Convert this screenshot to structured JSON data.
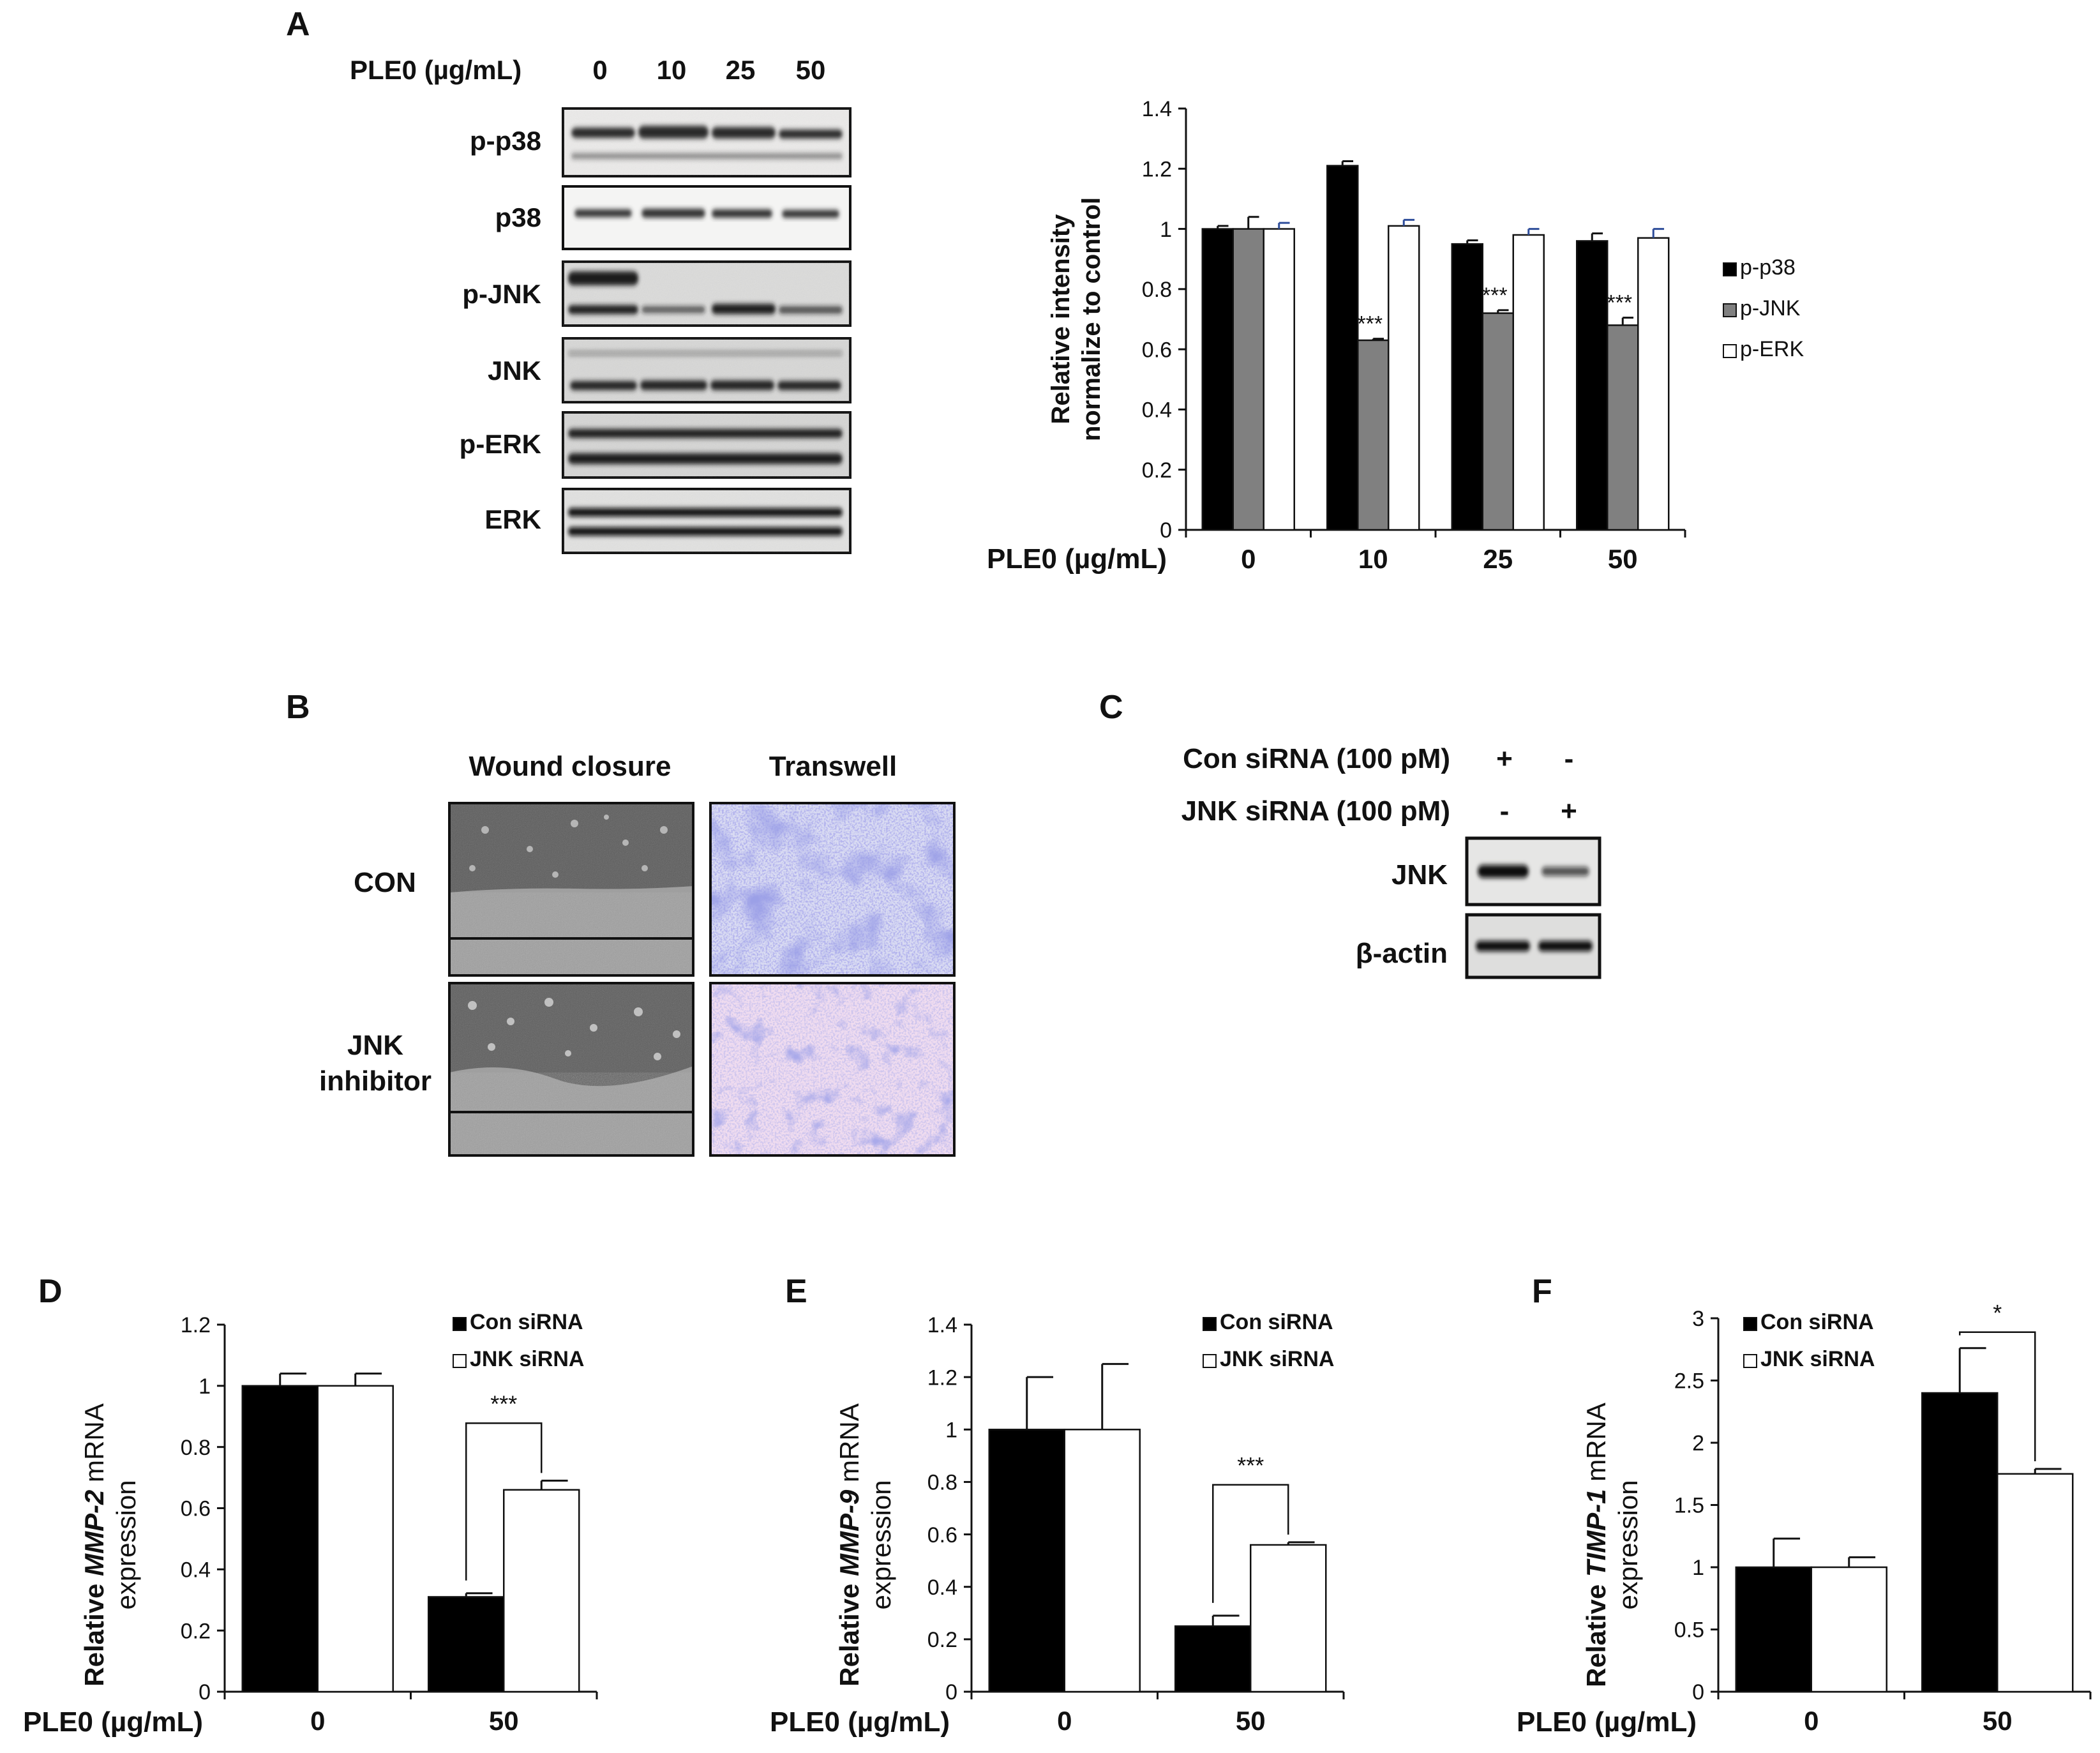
{
  "panel_A": {
    "letter": "A",
    "dose_label": "PLE0 (µg/mL)",
    "doses": [
      "0",
      "10",
      "25",
      "50"
    ],
    "blot_rows": [
      "p-p38",
      "p38",
      "p-JNK",
      "JNK",
      "p-ERK",
      "ERK"
    ]
  },
  "panel_B": {
    "letter": "B",
    "col_headers": [
      "Wound closure",
      "Transwell"
    ],
    "row_labels": [
      "CON",
      "JNK",
      "inhibitor"
    ]
  },
  "panel_C": {
    "letter": "C",
    "row1_label": "Con siRNA (100 pM)",
    "row1_signs": [
      "+",
      "-"
    ],
    "row2_label": "JNK siRNA (100 pM)",
    "row2_signs": [
      "-",
      "+"
    ],
    "blot_rows": [
      "JNK",
      "β-actin"
    ]
  },
  "panel_D": {
    "letter": "D",
    "ylabel_pre": "Relative ",
    "ylabel_gene": "MMP-2",
    "ylabel_post": " mRNA",
    "ylabel2": "expression",
    "xlabel": "PLE0 (µg/mL)"
  },
  "panel_E": {
    "letter": "E",
    "ylabel_pre": "Relative ",
    "ylabel_gene": "MMP-9",
    "ylabel_post": " mRNA",
    "ylabel2": "expression",
    "xlabel": "PLE0 (µg/mL)"
  },
  "panel_F": {
    "letter": "F",
    "ylabel_pre": "Relative ",
    "ylabel_gene": "TIMP-1",
    "ylabel_post": " mRNA",
    "ylabel2": "expression",
    "xlabel": "PLE0 (µg/mL)"
  },
  "chart_data": [
    {
      "id": "A",
      "type": "bar",
      "categories": [
        "0",
        "10",
        "25",
        "50"
      ],
      "xlabel": "PLE0 (µg/mL)",
      "ylabel": [
        "Relative intensity",
        "normalize to control"
      ],
      "ylim": [
        0,
        1.4
      ],
      "yticks": [
        "0",
        "0.2",
        "0.4",
        "0.6",
        "0.8",
        "1",
        "1.2",
        "1.4"
      ],
      "legend_position": "right",
      "series": [
        {
          "name": "p-p38",
          "color": "#000000",
          "values": [
            1.0,
            1.21,
            0.95,
            0.96
          ],
          "errors": [
            0.01,
            0.015,
            0.012,
            0.025
          ]
        },
        {
          "name": "p-JNK",
          "color": "#808080",
          "values": [
            1.0,
            0.63,
            0.72,
            0.68
          ],
          "errors": [
            0.04,
            0.005,
            0.01,
            0.025
          ]
        },
        {
          "name": "p-ERK",
          "color": "#ffffff",
          "values": [
            1.0,
            1.01,
            0.98,
            0.97
          ],
          "errors": [
            0.02,
            0.02,
            0.02,
            0.03
          ]
        }
      ],
      "annotations": [
        {
          "category": "10",
          "series": "p-JNK",
          "text": "***"
        },
        {
          "category": "25",
          "series": "p-JNK",
          "text": "***"
        },
        {
          "category": "50",
          "series": "p-JNK",
          "text": "***"
        }
      ]
    },
    {
      "id": "D",
      "type": "bar",
      "categories": [
        "0",
        "50"
      ],
      "xlabel": "PLE0 (µg/mL)",
      "ylim": [
        0,
        1.2
      ],
      "yticks": [
        "0",
        "0.2",
        "0.4",
        "0.6",
        "0.8",
        "1",
        "1.2"
      ],
      "legend_position": "top-right",
      "series": [
        {
          "name": "Con siRNA",
          "color": "#000000",
          "values": [
            1.0,
            0.31
          ],
          "errors": [
            0.04,
            0.012
          ]
        },
        {
          "name": "JNK siRNA",
          "color": "#ffffff",
          "values": [
            1.0,
            0.66
          ],
          "errors": [
            0.04,
            0.03
          ]
        }
      ],
      "annotations": [
        {
          "category": "50",
          "text": "***"
        }
      ]
    },
    {
      "id": "E",
      "type": "bar",
      "categories": [
        "0",
        "50"
      ],
      "xlabel": "PLE0 (µg/mL)",
      "ylim": [
        0,
        1.4
      ],
      "yticks": [
        "0",
        "0.2",
        "0.4",
        "0.6",
        "0.8",
        "1",
        "1.2",
        "1.4"
      ],
      "legend_position": "top-right",
      "series": [
        {
          "name": "Con siRNA",
          "color": "#000000",
          "values": [
            1.0,
            0.25
          ],
          "errors": [
            0.2,
            0.04
          ]
        },
        {
          "name": "JNK siRNA",
          "color": "#ffffff",
          "values": [
            1.0,
            0.56
          ],
          "errors": [
            0.25,
            0.01
          ]
        }
      ],
      "annotations": [
        {
          "category": "50",
          "text": "***"
        }
      ]
    },
    {
      "id": "F",
      "type": "bar",
      "categories": [
        "0",
        "50"
      ],
      "xlabel": "PLE0 (µg/mL)",
      "ylim": [
        0,
        3
      ],
      "yticks": [
        "0",
        "0.5",
        "1",
        "1.5",
        "2",
        "2.5",
        "3"
      ],
      "legend_position": "top-left",
      "series": [
        {
          "name": "Con siRNA",
          "color": "#000000",
          "values": [
            1.0,
            2.4
          ],
          "errors": [
            0.23,
            0.36
          ]
        },
        {
          "name": "JNK siRNA",
          "color": "#ffffff",
          "values": [
            1.0,
            1.75
          ],
          "errors": [
            0.08,
            0.04
          ]
        }
      ],
      "annotations": [
        {
          "category": "50",
          "text": "*"
        }
      ]
    }
  ]
}
